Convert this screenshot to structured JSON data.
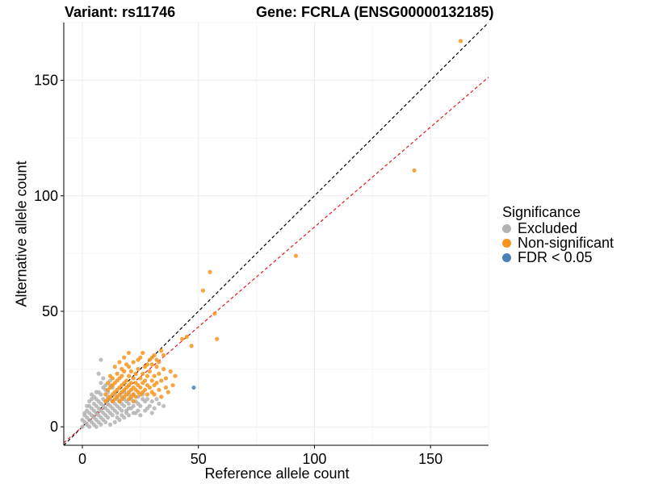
{
  "title_variant": "Variant: rs11746",
  "title_gene": "Gene: FCRLA (ENSG00000132185)",
  "chart_data": {
    "type": "scatter",
    "xlabel": "Reference allele count",
    "ylabel": "Alternative allele count",
    "xlim": [
      -8,
      175
    ],
    "ylim": [
      -8,
      175
    ],
    "xticks": [
      0,
      50,
      100,
      150
    ],
    "yticks": [
      0,
      50,
      100,
      150
    ],
    "grid": true,
    "reference_lines": [
      {
        "name": "identity",
        "slope": 1,
        "intercept": 0,
        "color": "#000000",
        "style": "dashed"
      },
      {
        "name": "expected",
        "slope": 0.865,
        "intercept": 0,
        "color": "#e31a1c",
        "style": "dashed"
      }
    ],
    "legend": {
      "title": "Significance",
      "position": "right",
      "entries": [
        {
          "label": "Excluded",
          "color": "#b3b3b3"
        },
        {
          "label": "Non-significant",
          "color": "#f7941d"
        },
        {
          "label": "FDR < 0.05",
          "color": "#4a7fb5"
        }
      ]
    },
    "series": [
      {
        "name": "Excluded",
        "color": "#b3b3b3",
        "points": [
          [
            0,
            0
          ],
          [
            1,
            2
          ],
          [
            2,
            1
          ],
          [
            2,
            4
          ],
          [
            3,
            3
          ],
          [
            3,
            6
          ],
          [
            4,
            2
          ],
          [
            4,
            5
          ],
          [
            4,
            8
          ],
          [
            5,
            4
          ],
          [
            5,
            7
          ],
          [
            5,
            10
          ],
          [
            6,
            3
          ],
          [
            6,
            6
          ],
          [
            6,
            9
          ],
          [
            6,
            12
          ],
          [
            7,
            5
          ],
          [
            7,
            8
          ],
          [
            7,
            11
          ],
          [
            8,
            4
          ],
          [
            8,
            7
          ],
          [
            8,
            10
          ],
          [
            8,
            14
          ],
          [
            9,
            6
          ],
          [
            9,
            9
          ],
          [
            9,
            12
          ],
          [
            10,
            5
          ],
          [
            10,
            8
          ],
          [
            10,
            11
          ],
          [
            10,
            16
          ],
          [
            11,
            7
          ],
          [
            11,
            10
          ],
          [
            11,
            13
          ],
          [
            12,
            6
          ],
          [
            12,
            9
          ],
          [
            12,
            12
          ],
          [
            12,
            18
          ],
          [
            13,
            8
          ],
          [
            13,
            11
          ],
          [
            14,
            7
          ],
          [
            14,
            10
          ],
          [
            14,
            14
          ],
          [
            15,
            9
          ],
          [
            15,
            12
          ],
          [
            16,
            8
          ],
          [
            16,
            11
          ],
          [
            17,
            10
          ],
          [
            17,
            13
          ],
          [
            18,
            9
          ],
          [
            18,
            12
          ],
          [
            19,
            11
          ],
          [
            20,
            10
          ],
          [
            20,
            8
          ],
          [
            21,
            12
          ],
          [
            22,
            9
          ],
          [
            23,
            11
          ],
          [
            24,
            10
          ],
          [
            25,
            9
          ],
          [
            26,
            12
          ],
          [
            27,
            11
          ],
          [
            28,
            8
          ],
          [
            24,
            7
          ],
          [
            22,
            6
          ],
          [
            20,
            5
          ],
          [
            18,
            4
          ],
          [
            16,
            3
          ],
          [
            14,
            2
          ],
          [
            12,
            1
          ],
          [
            10,
            2
          ],
          [
            8,
            1
          ],
          [
            6,
            0
          ],
          [
            3,
            0
          ],
          [
            1,
            5
          ],
          [
            2,
            7
          ],
          [
            3,
            9
          ],
          [
            5,
            13
          ],
          [
            7,
            15
          ],
          [
            8,
            19
          ],
          [
            9,
            21
          ],
          [
            7,
            23
          ],
          [
            8,
            29
          ],
          [
            9,
            17
          ],
          [
            11,
            15
          ],
          [
            13,
            17
          ],
          [
            15,
            6
          ],
          [
            17,
            5
          ],
          [
            19,
            7
          ],
          [
            21,
            8
          ],
          [
            23,
            6
          ],
          [
            25,
            5
          ],
          [
            27,
            7
          ],
          [
            29,
            9
          ],
          [
            30,
            6
          ],
          [
            31,
            8
          ],
          [
            33,
            10
          ],
          [
            35,
            9
          ],
          [
            24,
            13
          ],
          [
            22,
            14
          ],
          [
            26,
            14
          ],
          [
            20,
            14
          ],
          [
            18,
            15
          ],
          [
            4,
            12
          ],
          [
            2,
            9
          ],
          [
            1,
            6
          ],
          [
            0,
            3
          ],
          [
            5,
            1
          ],
          [
            7,
            2
          ],
          [
            9,
            3
          ],
          [
            11,
            4
          ],
          [
            13,
            5
          ],
          [
            15,
            4
          ],
          [
            17,
            7
          ],
          [
            19,
            6
          ],
          [
            6,
            15
          ],
          [
            4,
            14
          ],
          [
            10,
            18
          ],
          [
            12,
            20
          ],
          [
            3,
            11
          ],
          [
            28,
            12
          ],
          [
            30,
            11
          ],
          [
            32,
            12
          ]
        ]
      },
      {
        "name": "Non-significant",
        "color": "#f7941d",
        "points": [
          [
            10,
            11
          ],
          [
            10,
            14
          ],
          [
            11,
            12
          ],
          [
            11,
            16
          ],
          [
            12,
            13
          ],
          [
            12,
            17
          ],
          [
            13,
            11
          ],
          [
            13,
            14
          ],
          [
            13,
            18
          ],
          [
            14,
            12
          ],
          [
            14,
            15
          ],
          [
            14,
            19
          ],
          [
            15,
            13
          ],
          [
            15,
            16
          ],
          [
            15,
            20
          ],
          [
            16,
            11
          ],
          [
            16,
            14
          ],
          [
            16,
            17
          ],
          [
            16,
            21
          ],
          [
            17,
            12
          ],
          [
            17,
            15
          ],
          [
            17,
            18
          ],
          [
            17,
            22
          ],
          [
            18,
            13
          ],
          [
            18,
            16
          ],
          [
            18,
            19
          ],
          [
            18,
            24
          ],
          [
            19,
            14
          ],
          [
            19,
            17
          ],
          [
            19,
            20
          ],
          [
            20,
            12
          ],
          [
            20,
            15
          ],
          [
            20,
            18
          ],
          [
            20,
            22
          ],
          [
            20,
            26
          ],
          [
            21,
            13
          ],
          [
            21,
            16
          ],
          [
            21,
            19
          ],
          [
            22,
            11
          ],
          [
            22,
            14
          ],
          [
            22,
            17
          ],
          [
            22,
            21
          ],
          [
            22,
            28
          ],
          [
            23,
            13
          ],
          [
            23,
            16
          ],
          [
            23,
            19
          ],
          [
            23,
            23
          ],
          [
            24,
            15
          ],
          [
            24,
            18
          ],
          [
            24,
            25
          ],
          [
            25,
            14
          ],
          [
            25,
            17
          ],
          [
            25,
            21
          ],
          [
            25,
            30
          ],
          [
            26,
            15
          ],
          [
            26,
            19
          ],
          [
            26,
            23
          ],
          [
            27,
            16
          ],
          [
            27,
            20
          ],
          [
            28,
            14
          ],
          [
            28,
            18
          ],
          [
            28,
            22
          ],
          [
            29,
            17
          ],
          [
            29,
            24
          ],
          [
            30,
            15
          ],
          [
            30,
            20
          ],
          [
            30,
            27
          ],
          [
            31,
            18
          ],
          [
            31,
            22
          ],
          [
            32,
            19
          ],
          [
            32,
            29
          ],
          [
            33,
            16
          ],
          [
            33,
            23
          ],
          [
            34,
            20
          ],
          [
            35,
            25
          ],
          [
            36,
            17
          ],
          [
            36,
            21
          ],
          [
            38,
            24
          ],
          [
            39,
            18
          ],
          [
            40,
            22
          ],
          [
            28,
            27
          ],
          [
            30,
            30
          ],
          [
            26,
            32
          ],
          [
            24,
            29
          ],
          [
            27,
            26
          ],
          [
            21,
            24
          ],
          [
            19,
            27
          ],
          [
            17,
            25
          ],
          [
            15,
            23
          ],
          [
            13,
            21
          ],
          [
            11,
            19
          ],
          [
            12,
            22
          ],
          [
            14,
            26
          ],
          [
            16,
            28
          ],
          [
            18,
            30
          ],
          [
            20,
            32
          ],
          [
            33,
            28
          ],
          [
            35,
            31
          ],
          [
            32,
            26
          ],
          [
            29,
            29
          ],
          [
            31,
            31
          ],
          [
            34,
            33
          ],
          [
            43,
            38
          ],
          [
            45,
            39
          ],
          [
            47,
            35
          ],
          [
            52,
            59
          ],
          [
            55,
            67
          ],
          [
            57,
            49
          ],
          [
            58,
            38
          ],
          [
            92,
            74
          ],
          [
            143,
            111
          ],
          [
            163,
            167
          ],
          [
            34,
            13
          ],
          [
            31,
            14
          ],
          [
            37,
            15
          ]
        ]
      },
      {
        "name": "FDR < 0.05",
        "color": "#4a7fb5",
        "points": [
          [
            48,
            17
          ]
        ]
      }
    ]
  }
}
